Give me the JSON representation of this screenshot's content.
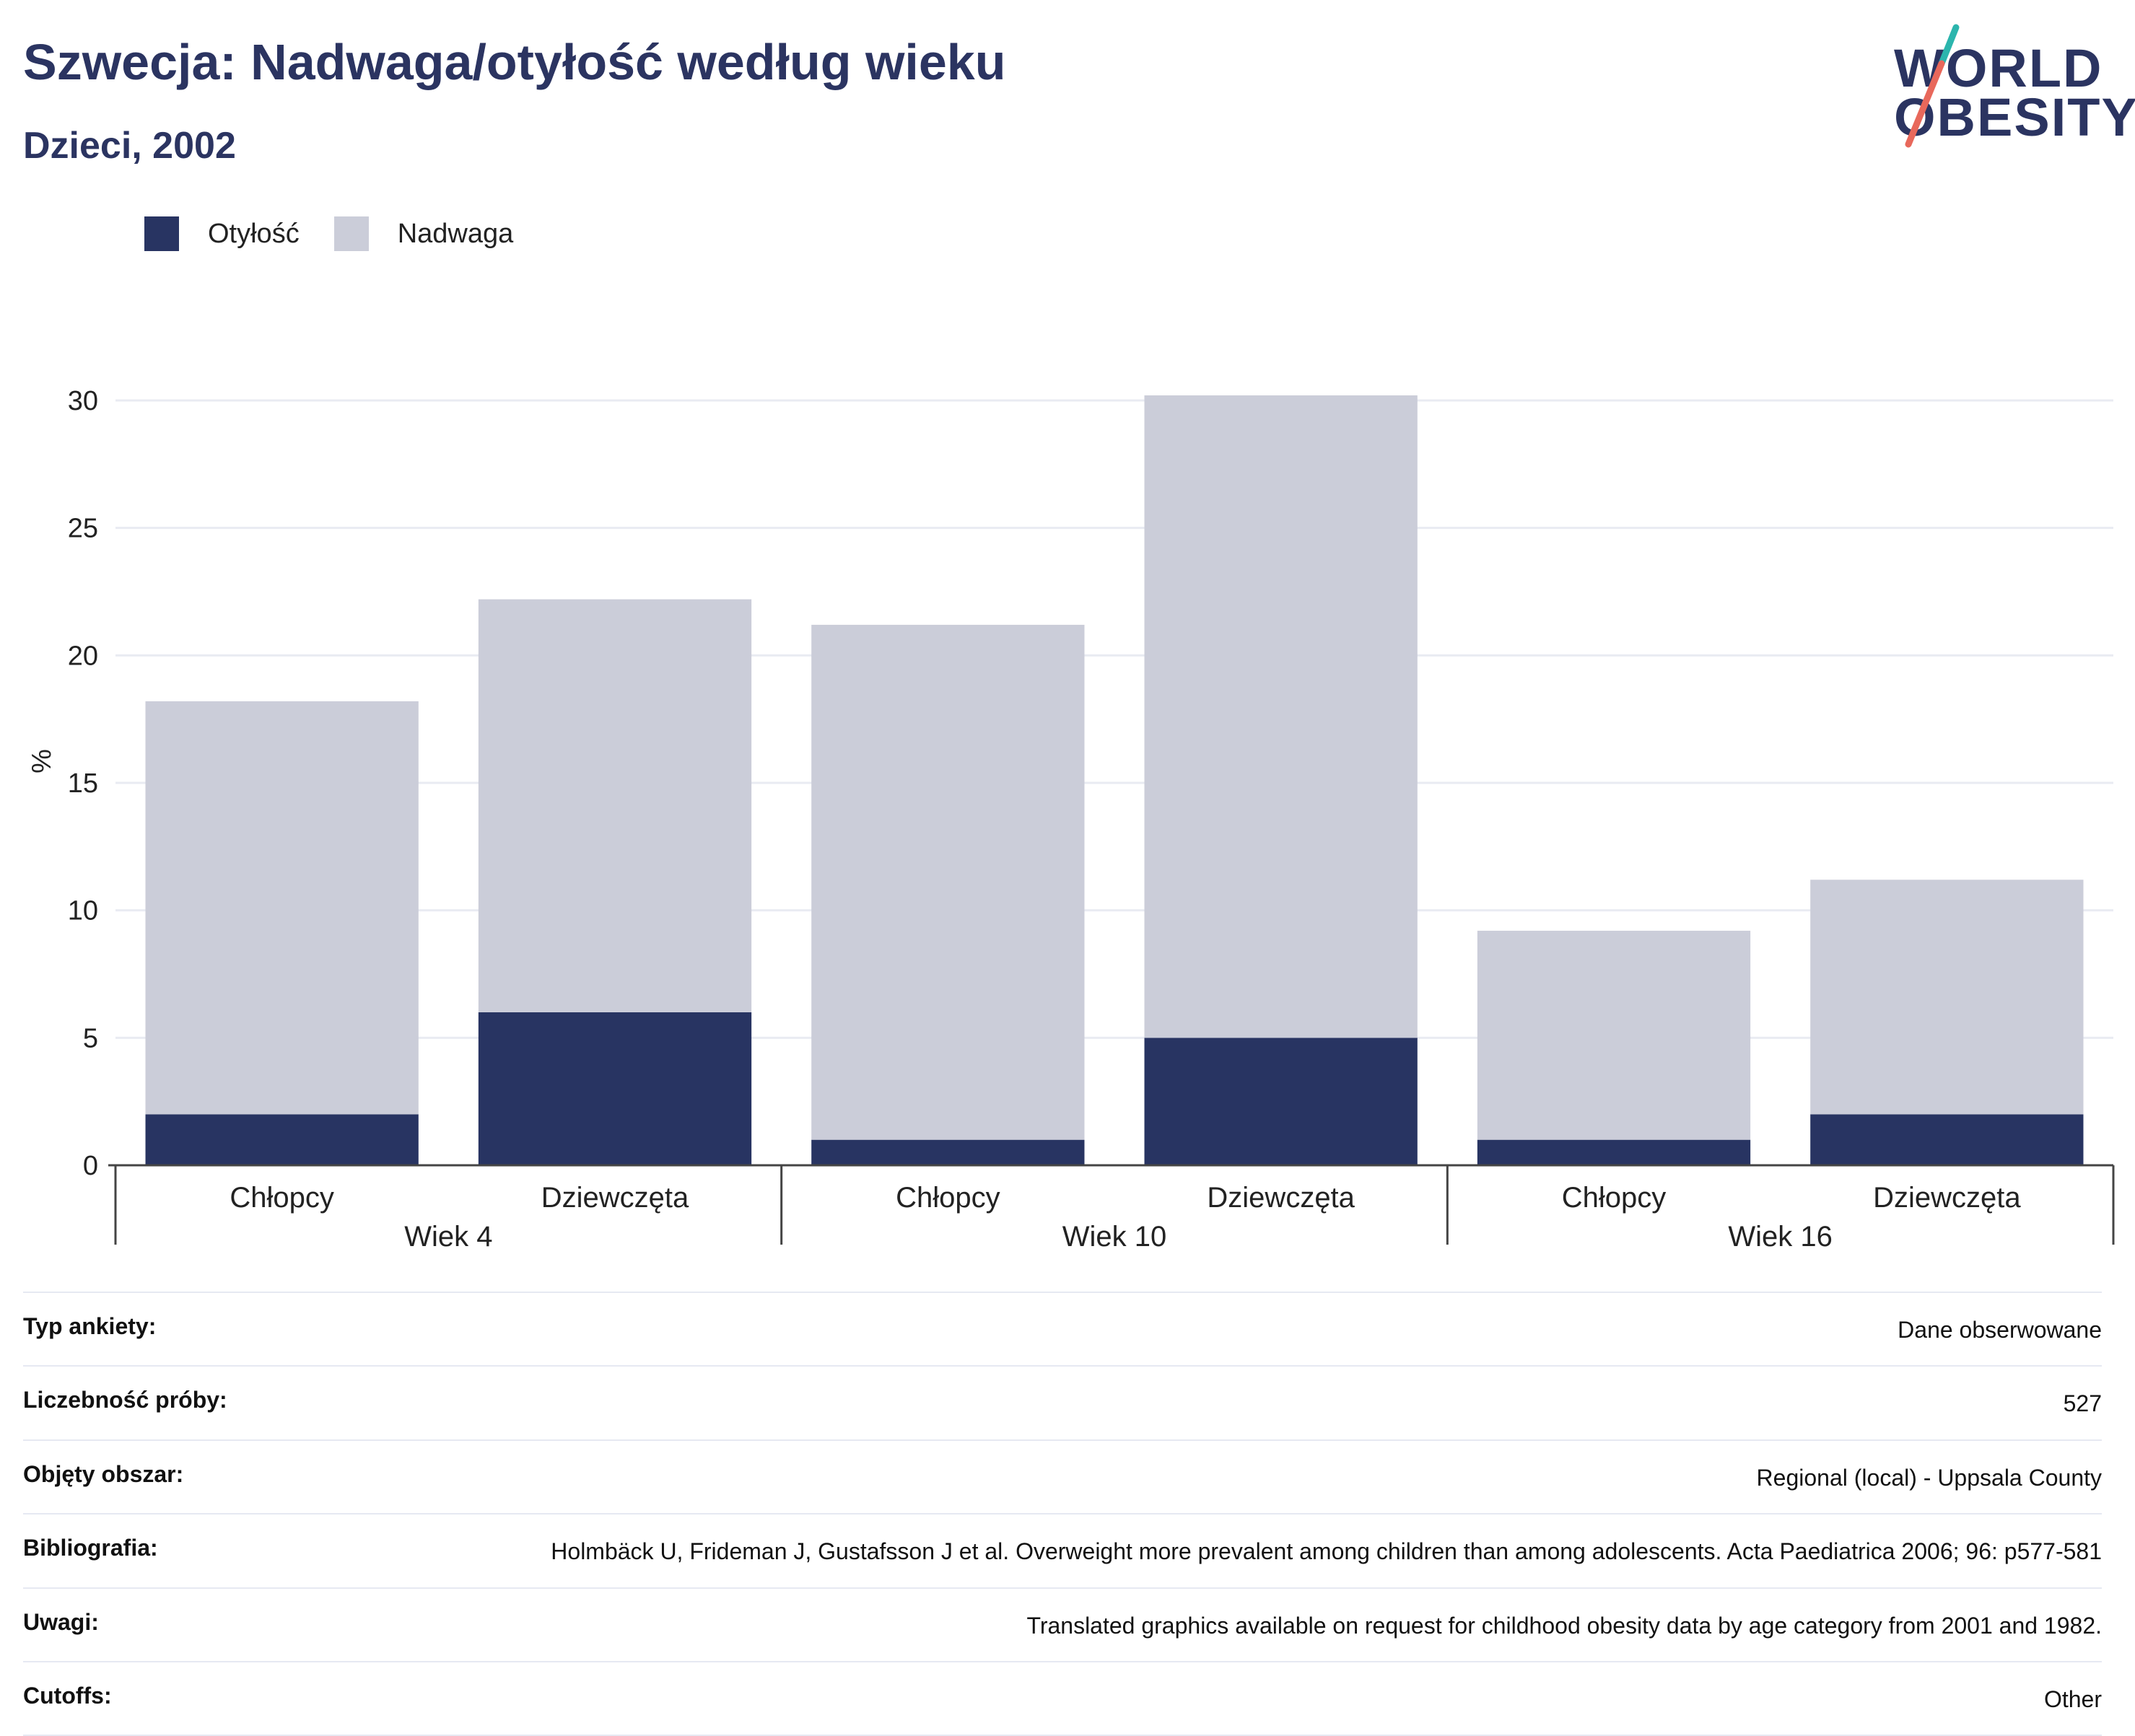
{
  "header": {
    "title": "Szwecja: Nadwaga/otyłość według wieku",
    "subtitle": "Dzieci, 2002"
  },
  "logo": {
    "line1": "WORLD",
    "line2": "OBESITY",
    "stroke_colors": [
      "#2bb5ad",
      "#e8685b"
    ]
  },
  "chart_data": {
    "type": "bar",
    "stacked": true,
    "title": "",
    "xlabel": "",
    "ylabel": "%",
    "ylim": [
      0,
      30
    ],
    "yticks": [
      0,
      5,
      10,
      15,
      20,
      25,
      30
    ],
    "grid": true,
    "legend_position": "top-left",
    "groups": [
      "Wiek 4",
      "Wiek 10",
      "Wiek 16"
    ],
    "categories": [
      "Chłopcy",
      "Dziewczęta",
      "Chłopcy",
      "Dziewczęta",
      "Chłopcy",
      "Dziewczęta"
    ],
    "category_group": [
      0,
      0,
      1,
      1,
      2,
      2
    ],
    "series": [
      {
        "name": "Otyłość",
        "color": "#283462",
        "values": [
          2,
          6,
          1,
          5,
          1,
          2
        ]
      },
      {
        "name": "Nadwaga",
        "color": "#cbcdd9",
        "values": [
          16.2,
          16.2,
          20.2,
          25.2,
          8.2,
          9.2
        ]
      }
    ]
  },
  "info_table": [
    {
      "label": "Typ ankiety:",
      "value": "Dane obserwowane"
    },
    {
      "label": "Liczebność próby:",
      "value": "527"
    },
    {
      "label": "Objęty obszar:",
      "value": "Regional (local) - Uppsala County"
    },
    {
      "label": "Bibliografia:",
      "value": "Holmbäck U, Frideman J, Gustafsson J et al. Overweight more prevalent among children than among adolescents. Acta Paediatrica 2006; 96: p577-581"
    },
    {
      "label": "Uwagi:",
      "value": "Translated graphics available on request for childhood obesity data by age category from 2001 and 1982."
    },
    {
      "label": "Cutoffs:",
      "value": "Other"
    }
  ]
}
